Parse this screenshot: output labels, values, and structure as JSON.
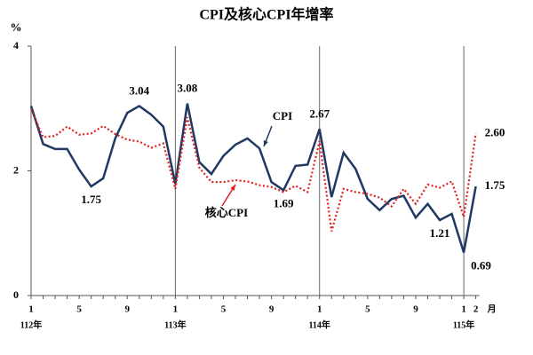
{
  "chart_data": {
    "type": "line",
    "title": "CPI及核心CPI年增率",
    "y_unit": "%",
    "categories": [
      "1",
      null,
      null,
      null,
      "5",
      null,
      null,
      null,
      "9",
      null,
      null,
      null,
      "1",
      null,
      null,
      null,
      "5",
      null,
      null,
      null,
      "9",
      null,
      null,
      null,
      "1",
      null,
      null,
      null,
      "5",
      null,
      null,
      null,
      "9",
      null,
      null,
      null,
      "1",
      "2"
    ],
    "year_labels": [
      "112年",
      null,
      null,
      null,
      null,
      null,
      null,
      null,
      null,
      null,
      null,
      null,
      "113年",
      null,
      null,
      null,
      null,
      null,
      null,
      null,
      null,
      null,
      null,
      null,
      "114年",
      null,
      null,
      null,
      null,
      null,
      null,
      null,
      null,
      null,
      null,
      null,
      "115年",
      null
    ],
    "month_unit": "月",
    "series": [
      {
        "name": "CPI",
        "color": "#1f3864",
        "values": [
          3.04,
          2.43,
          2.35,
          2.35,
          2.02,
          1.75,
          1.88,
          2.52,
          2.93,
          3.04,
          2.9,
          2.71,
          1.79,
          3.08,
          2.14,
          1.95,
          2.24,
          2.42,
          2.52,
          2.36,
          1.82,
          1.69,
          2.08,
          2.1,
          2.67,
          1.58,
          2.29,
          2.03,
          1.55,
          1.37,
          1.55,
          1.6,
          1.25,
          1.47,
          1.21,
          1.31,
          0.69,
          1.75
        ],
        "value_labels": [
          null,
          null,
          null,
          null,
          null,
          "1.75",
          null,
          null,
          null,
          "3.04",
          null,
          null,
          null,
          "3.08",
          null,
          null,
          null,
          null,
          null,
          null,
          null,
          "1.69",
          null,
          null,
          "2.67",
          null,
          null,
          null,
          null,
          null,
          null,
          null,
          null,
          null,
          "1.21",
          null,
          "0.69",
          "1.75"
        ]
      },
      {
        "name": "核心CPI",
        "color": "#e02020",
        "values": [
          2.99,
          2.54,
          2.56,
          2.71,
          2.58,
          2.6,
          2.72,
          2.59,
          2.5,
          2.47,
          2.37,
          2.44,
          1.71,
          2.86,
          2.05,
          1.82,
          1.82,
          1.85,
          1.83,
          1.77,
          1.74,
          1.66,
          1.76,
          1.66,
          2.48,
          1.03,
          1.71,
          1.66,
          1.63,
          1.57,
          1.43,
          1.71,
          1.47,
          1.78,
          1.73,
          1.83,
          1.26,
          2.6
        ],
        "value_labels": [
          null,
          null,
          null,
          null,
          null,
          null,
          null,
          null,
          null,
          null,
          null,
          null,
          null,
          null,
          null,
          null,
          null,
          null,
          null,
          null,
          null,
          null,
          null,
          null,
          null,
          null,
          null,
          null,
          null,
          null,
          null,
          null,
          null,
          null,
          null,
          null,
          null,
          "2.60"
        ]
      }
    ],
    "ylim": [
      0,
      4
    ],
    "yticks": [
      0,
      2,
      4
    ]
  }
}
